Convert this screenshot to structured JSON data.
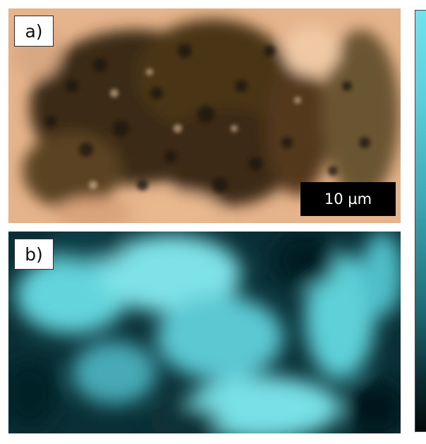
{
  "panels": {
    "a": {
      "label": "a)",
      "scale_bar": "10 µm"
    },
    "b": {
      "label": "b)"
    }
  },
  "colors": {
    "optical_background": "#e8b890",
    "optical_dark_particles": "#2a2214",
    "chemical_map_bright": "#7ee6ea",
    "chemical_map_dark": "#031215",
    "colorbar_top": "#6fe4ee",
    "colorbar_bottom": "#020809"
  }
}
